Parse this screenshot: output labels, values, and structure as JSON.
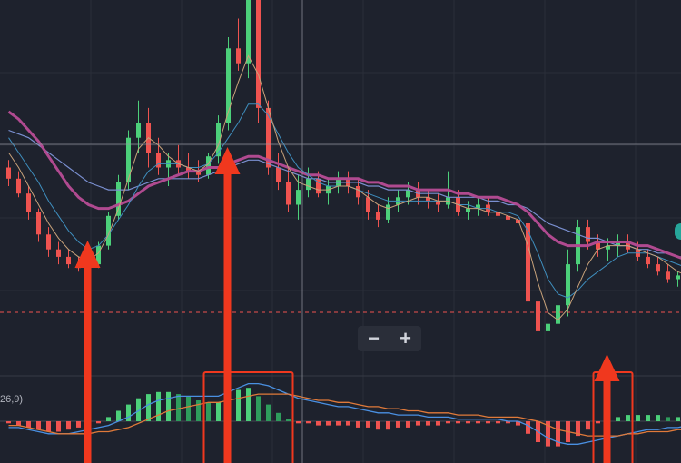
{
  "zoom": {
    "minus_label": "−",
    "plus_label": "+"
  },
  "macd": {
    "label": "26,9)"
  },
  "colors": {
    "up": "#4cd07a",
    "down": "#ef5350",
    "ma_pink": "#b04a90",
    "ma_blue": "#7a8fd0",
    "ma_teal": "#3f8fbf",
    "ma_tan": "#c8a27a",
    "arrow": "#f0381e",
    "grid": "#2a2e39"
  },
  "chart_data": {
    "type": "candlestick",
    "panes": [
      "price",
      "macd"
    ],
    "price": {
      "candles": [
        [
          100,
          102,
          95,
          97
        ],
        [
          97,
          99,
          92,
          93
        ],
        [
          93,
          95,
          86,
          88
        ],
        [
          88,
          89,
          80,
          82
        ],
        [
          82,
          84,
          76,
          78
        ],
        [
          78,
          80,
          74,
          76
        ],
        [
          76,
          78,
          73,
          74
        ],
        [
          74,
          76,
          72,
          73
        ],
        [
          73,
          75,
          71,
          74
        ],
        [
          74,
          80,
          73,
          79
        ],
        [
          79,
          88,
          78,
          87
        ],
        [
          87,
          98,
          86,
          96
        ],
        [
          96,
          110,
          94,
          108
        ],
        [
          108,
          118,
          104,
          112
        ],
        [
          112,
          116,
          100,
          104
        ],
        [
          104,
          108,
          98,
          100
        ],
        [
          100,
          104,
          95,
          102
        ],
        [
          102,
          106,
          98,
          100
        ],
        [
          100,
          104,
          97,
          99
        ],
        [
          99,
          102,
          96,
          98
        ],
        [
          98,
          104,
          97,
          103
        ],
        [
          103,
          114,
          101,
          112
        ],
        [
          112,
          135,
          110,
          132
        ],
        [
          132,
          140,
          126,
          128
        ],
        [
          128,
          150,
          124,
          146
        ],
        [
          146,
          148,
          112,
          116
        ],
        [
          116,
          118,
          98,
          100
        ],
        [
          100,
          104,
          94,
          96
        ],
        [
          96,
          100,
          88,
          90
        ],
        [
          90,
          98,
          86,
          94
        ],
        [
          94,
          100,
          92,
          97
        ],
        [
          97,
          99,
          92,
          93
        ],
        [
          93,
          97,
          90,
          95
        ],
        [
          95,
          99,
          93,
          97
        ],
        [
          97,
          99,
          93,
          95
        ],
        [
          95,
          97,
          90,
          92
        ],
        [
          92,
          94,
          86,
          88
        ],
        [
          88,
          90,
          84,
          86
        ],
        [
          86,
          92,
          85,
          90
        ],
        [
          90,
          94,
          88,
          92
        ],
        [
          92,
          96,
          90,
          94
        ],
        [
          94,
          96,
          90,
          92
        ],
        [
          92,
          94,
          89,
          91
        ],
        [
          91,
          93,
          88,
          90
        ],
        [
          90,
          99,
          89,
          92
        ],
        [
          92,
          94,
          87,
          88
        ],
        [
          88,
          91,
          86,
          89
        ],
        [
          89,
          92,
          87,
          90
        ],
        [
          90,
          92,
          87,
          88
        ],
        [
          88,
          90,
          86,
          87
        ],
        [
          87,
          89,
          85,
          86
        ],
        [
          86,
          88,
          84,
          85
        ],
        [
          85,
          84,
          62,
          64
        ],
        [
          64,
          66,
          54,
          56
        ],
        [
          56,
          60,
          50,
          58
        ],
        [
          58,
          64,
          57,
          63
        ],
        [
          63,
          78,
          60,
          74
        ],
        [
          74,
          86,
          72,
          84
        ],
        [
          84,
          86,
          78,
          80
        ],
        [
          80,
          82,
          76,
          78
        ],
        [
          78,
          81,
          75,
          79
        ],
        [
          79,
          82,
          76,
          80
        ],
        [
          80,
          82,
          77,
          78
        ],
        [
          78,
          80,
          75,
          76
        ],
        [
          76,
          78,
          73,
          74
        ],
        [
          74,
          76,
          71,
          72
        ],
        [
          72,
          74,
          69,
          70
        ],
        [
          70,
          72,
          68,
          71
        ],
        [
          71,
          73,
          69,
          70
        ]
      ],
      "ma_long": [
        110,
        109,
        108,
        106,
        104,
        102,
        100,
        98,
        96,
        95,
        94,
        94,
        94,
        95,
        96,
        97,
        97,
        97,
        97,
        97,
        98,
        99,
        100,
        101,
        102,
        102,
        101,
        100,
        99,
        98,
        97,
        97,
        96,
        96,
        96,
        96,
        95,
        95,
        94,
        94,
        94,
        93,
        93,
        93,
        92,
        92,
        92,
        92,
        91,
        91,
        90,
        90,
        89,
        87,
        85,
        84,
        83,
        82,
        81,
        81,
        80,
        79,
        79,
        78,
        78,
        77,
        77,
        76,
        76
      ],
      "ma_mid": [
        115,
        113,
        110,
        107,
        103,
        99,
        95,
        92,
        90,
        89,
        89,
        90,
        91,
        93,
        95,
        96,
        97,
        98,
        99,
        99,
        100,
        100,
        101,
        102,
        103,
        103,
        102,
        101,
        100,
        99,
        98,
        98,
        97,
        97,
        97,
        97,
        96,
        96,
        95,
        95,
        95,
        94,
        94,
        94,
        94,
        93,
        93,
        92,
        92,
        92,
        91,
        90,
        88,
        85,
        82,
        80,
        79,
        79,
        79,
        80,
        80,
        80,
        80,
        79,
        79,
        78,
        77,
        76,
        75
      ],
      "ma_teal": [
        108,
        104,
        100,
        96,
        91,
        87,
        83,
        80,
        78,
        79,
        82,
        86,
        90,
        95,
        99,
        101,
        101,
        101,
        100,
        100,
        101,
        104,
        108,
        112,
        117,
        117,
        114,
        109,
        104,
        100,
        98,
        96,
        95,
        95,
        95,
        94,
        93,
        92,
        91,
        91,
        91,
        91,
        91,
        91,
        91,
        90,
        90,
        89,
        89,
        88,
        88,
        87,
        83,
        77,
        70,
        66,
        65,
        67,
        70,
        72,
        74,
        76,
        77,
        77,
        77,
        76,
        75,
        74,
        73
      ],
      "ma_tan": [
        104,
        100,
        95,
        90,
        85,
        81,
        78,
        76,
        75,
        77,
        82,
        89,
        97,
        105,
        108,
        106,
        103,
        101,
        100,
        99,
        101,
        106,
        115,
        123,
        130,
        125,
        116,
        107,
        100,
        96,
        95,
        94,
        94,
        95,
        95,
        94,
        92,
        90,
        89,
        90,
        91,
        92,
        92,
        91,
        91,
        90,
        89,
        89,
        88,
        88,
        87,
        86,
        79,
        69,
        61,
        59,
        62,
        68,
        74,
        78,
        79,
        79,
        79,
        78,
        77,
        76,
        74,
        72,
        71
      ]
    },
    "macd_pane": {
      "histogram": [
        -1,
        -2,
        -3,
        -4,
        -5,
        -5,
        -4,
        -3,
        -2,
        -1,
        2,
        5,
        8,
        11,
        13,
        14,
        14,
        13,
        12,
        10,
        9,
        9,
        12,
        15,
        16,
        12,
        8,
        4,
        1,
        -1,
        -1,
        -2,
        -2,
        -2,
        -2,
        -3,
        -3,
        -4,
        -4,
        -3,
        -3,
        -2,
        -2,
        -2,
        -1,
        -1,
        -1,
        -1,
        -1,
        -1,
        -1,
        -2,
        -6,
        -10,
        -12,
        -12,
        -10,
        -7,
        -4,
        -1,
        1,
        2,
        3,
        3,
        3,
        3,
        2,
        2,
        1
      ],
      "line_a": [
        -3,
        -3,
        -4,
        -5,
        -6,
        -6,
        -6,
        -5,
        -4,
        -3,
        -2,
        0,
        2,
        5,
        8,
        10,
        11,
        12,
        12,
        12,
        12,
        12,
        14,
        16,
        18,
        18,
        17,
        15,
        13,
        11,
        10,
        9,
        8,
        7,
        7,
        6,
        5,
        4,
        4,
        3,
        3,
        3,
        2,
        2,
        2,
        1,
        1,
        1,
        1,
        1,
        0,
        0,
        -2,
        -5,
        -8,
        -10,
        -11,
        -11,
        -10,
        -9,
        -8,
        -7,
        -6,
        -5,
        -4,
        -4,
        -3,
        -3,
        -2
      ],
      "line_b": [
        -2,
        -2,
        -3,
        -4,
        -5,
        -6,
        -6,
        -6,
        -6,
        -5,
        -5,
        -4,
        -3,
        -1,
        1,
        3,
        5,
        6,
        7,
        8,
        9,
        9,
        10,
        11,
        12,
        13,
        13,
        13,
        13,
        12,
        11,
        10,
        10,
        9,
        9,
        8,
        7,
        7,
        6,
        6,
        5,
        5,
        4,
        4,
        4,
        3,
        3,
        3,
        2,
        2,
        2,
        2,
        1,
        0,
        -2,
        -4,
        -5,
        -6,
        -7,
        -7,
        -7,
        -7,
        -6,
        -6,
        -5,
        -5,
        -5,
        -4,
        -4
      ]
    },
    "title": "",
    "xlabel": "",
    "ylabel": "",
    "grid": true,
    "crosshair": true,
    "reference_line": "dashed",
    "annotation_arrows": [
      {
        "candle_index": 8,
        "pointing": "up"
      },
      {
        "candle_index": 22,
        "pointing": "up"
      },
      {
        "candle_index": 60,
        "pointing": "up"
      }
    ],
    "highlight_boxes": [
      {
        "from_index": 20,
        "to_index": 28,
        "pane": "macd"
      },
      {
        "from_index": 59,
        "to_index": 62,
        "pane": "macd"
      }
    ]
  }
}
